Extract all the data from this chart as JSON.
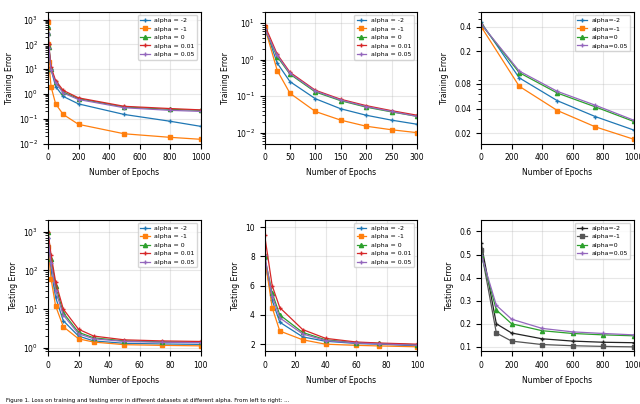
{
  "color_map": {
    "-2": "#1f77b4",
    "-1": "#ff7f0e",
    "0": "#2ca02c",
    "0.01": "#d62728",
    "0.05": "#9467bd"
  },
  "color_map_br": {
    "-2": "#222222",
    "-1": "#555555",
    "0": "#2ca02c",
    "0.05": "#9467bd"
  },
  "label_map": {
    "-2": "alpha = -2",
    "-1": "alpha = -1",
    "0": "alpha = 0",
    "0.01": "alpha = 0.01",
    "0.05": "alpha = 0.05"
  },
  "label_map2": {
    "-2": "alpha=-2",
    "-1": "alpha=-1",
    "0": "alpha=0",
    "0.05": "alpha=0.05"
  },
  "figure_caption": "Figure 1. Loss on training and testing error in different datasets at different alpha. From left to right: ..."
}
